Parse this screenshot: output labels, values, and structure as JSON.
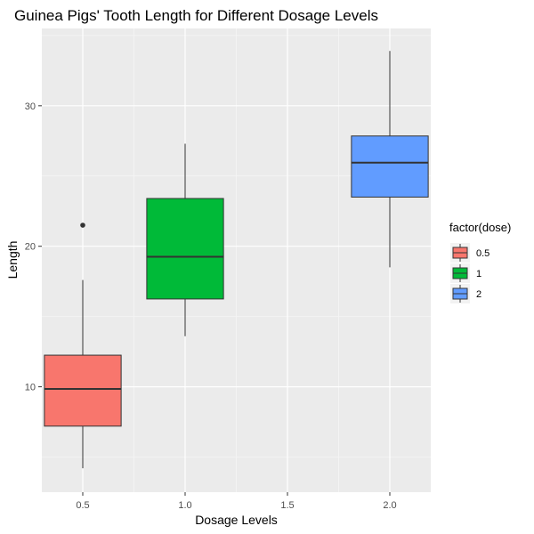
{
  "chart_data": {
    "type": "box",
    "title": "Guinea Pigs' Tooth Length for Different Dosage Levels",
    "xlabel": "Dosage Levels",
    "ylabel": "Length",
    "x_ticks": [
      "0.5",
      "1.0",
      "1.5",
      "2.0"
    ],
    "y_ticks": [
      "10",
      "20",
      "30"
    ],
    "xlim": [
      0.3,
      2.2
    ],
    "ylim": [
      2.5,
      35.5
    ],
    "grid": true,
    "legend": {
      "title": "factor(dose)",
      "placement": "right",
      "entries": [
        "0.5",
        "1",
        "2"
      ]
    },
    "series": [
      {
        "name": "0.5",
        "x": 0.5,
        "color": "#F8766D",
        "min": 4.2,
        "q1": 7.2,
        "median": 9.85,
        "q3": 12.25,
        "max": 17.6,
        "outliers": [
          21.5
        ]
      },
      {
        "name": "1",
        "x": 1.0,
        "color": "#00BA38",
        "min": 13.6,
        "q1": 16.25,
        "median": 19.25,
        "q3": 23.4,
        "max": 27.3,
        "outliers": []
      },
      {
        "name": "2",
        "x": 2.0,
        "color": "#619CFF",
        "min": 18.5,
        "q1": 23.5,
        "median": 25.95,
        "q3": 27.85,
        "max": 33.9,
        "outliers": []
      }
    ]
  }
}
